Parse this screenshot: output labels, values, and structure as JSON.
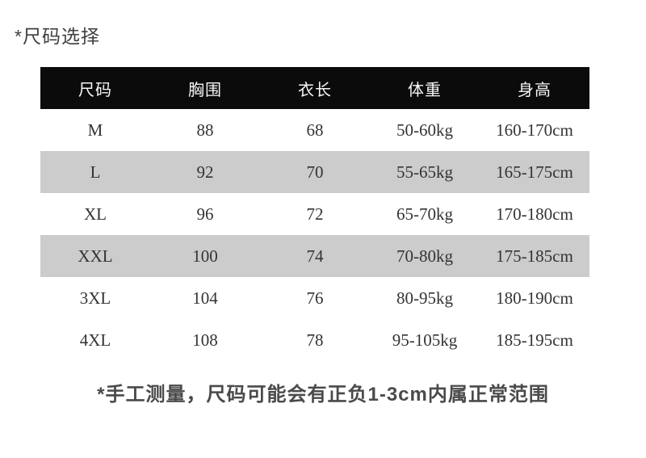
{
  "page": {
    "title": "*尺码选择",
    "footnote": "*手工测量，尺码可能会有正负1-3cm内属正常范围"
  },
  "size_table": {
    "columns": [
      "尺码",
      "胸围",
      "衣长",
      "体重",
      "身高"
    ],
    "rows": [
      [
        "M",
        "88",
        "68",
        "50-60kg",
        "160-170cm"
      ],
      [
        "L",
        "92",
        "70",
        "55-65kg",
        "165-175cm"
      ],
      [
        "XL",
        "96",
        "72",
        "65-70kg",
        "170-180cm"
      ],
      [
        "XXL",
        "100",
        "74",
        "70-80kg",
        "175-185cm"
      ],
      [
        "3XL",
        "104",
        "76",
        "80-95kg",
        "180-190cm"
      ],
      [
        "4XL",
        "108",
        "78",
        "95-105kg",
        "185-195cm"
      ]
    ],
    "shaded_rows": [
      1,
      3
    ]
  },
  "colors": {
    "header_bg": "#0b0b0b",
    "header_text": "#f7f7f7",
    "shaded_row_bg": "#cccccc",
    "cell_text": "#333333",
    "title_color": "#404040",
    "footnote_color": "#4a4a4a"
  }
}
